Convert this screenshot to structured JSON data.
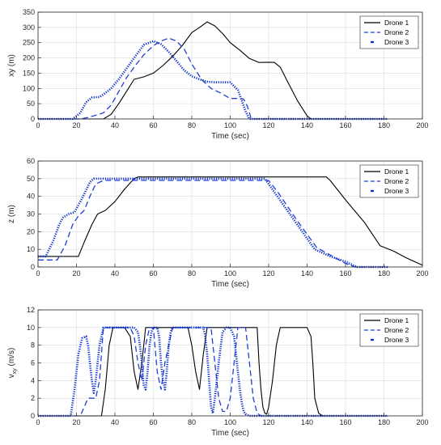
{
  "chart_data": [
    {
      "type": "line",
      "xlabel": "Time (sec)",
      "ylabel": "xy (m)",
      "xlim": [
        0,
        200
      ],
      "ylim": [
        0,
        350
      ],
      "xticks": [
        0,
        20,
        40,
        60,
        80,
        100,
        120,
        140,
        160,
        180,
        200
      ],
      "yticks": [
        0,
        50,
        100,
        150,
        200,
        250,
        300,
        350
      ],
      "grid": true,
      "legend_position": "top-right",
      "series": [
        {
          "name": "Drone 1",
          "color": "#000000",
          "style": "solid",
          "x": [
            0,
            34,
            38,
            42,
            46,
            50,
            55,
            60,
            65,
            70,
            75,
            80,
            84,
            88,
            92,
            96,
            100,
            105,
            110,
            115,
            120,
            123,
            126,
            130,
            135,
            140,
            142,
            182
          ],
          "y": [
            0,
            0,
            15,
            50,
            90,
            130,
            138,
            150,
            175,
            205,
            240,
            283,
            300,
            318,
            305,
            280,
            250,
            225,
            198,
            185,
            186,
            185,
            170,
            120,
            60,
            10,
            0,
            0
          ]
        },
        {
          "name": "Drone 2",
          "color": "#1f3fd6",
          "style": "dashed",
          "x": [
            0,
            22,
            26,
            30,
            34,
            38,
            42,
            46,
            50,
            55,
            60,
            64,
            68,
            72,
            76,
            80,
            85,
            90,
            95,
            100,
            104,
            107,
            109,
            111,
            180
          ],
          "y": [
            0,
            0,
            5,
            12,
            20,
            45,
            90,
            135,
            170,
            210,
            240,
            255,
            265,
            255,
            230,
            180,
            130,
            100,
            85,
            67,
            67,
            65,
            40,
            0,
            0
          ]
        },
        {
          "name": "Drone 3",
          "color": "#0a2fd0",
          "style": "dotted",
          "x": [
            0,
            18,
            22,
            25,
            28,
            32,
            34,
            38,
            42,
            46,
            50,
            55,
            60,
            64,
            68,
            72,
            76,
            80,
            84,
            88,
            92,
            96,
            100,
            104,
            106,
            108,
            110,
            182
          ],
          "y": [
            0,
            0,
            20,
            55,
            70,
            72,
            80,
            100,
            130,
            165,
            200,
            243,
            255,
            245,
            220,
            190,
            160,
            140,
            130,
            122,
            120,
            120,
            120,
            95,
            60,
            25,
            0,
            0
          ]
        }
      ]
    },
    {
      "type": "line",
      "xlabel": "Time (sec)",
      "ylabel": "z (m)",
      "xlim": [
        0,
        200
      ],
      "ylim": [
        0,
        60
      ],
      "xticks": [
        0,
        20,
        40,
        60,
        80,
        100,
        120,
        140,
        160,
        180,
        200
      ],
      "yticks": [
        0,
        10,
        20,
        30,
        40,
        50,
        60
      ],
      "grid": true,
      "legend_position": "top-right",
      "series": [
        {
          "name": "Drone 1",
          "color": "#000000",
          "style": "solid",
          "x": [
            0,
            21,
            24,
            28,
            31,
            35,
            40,
            45,
            50,
            52,
            100,
            150,
            152,
            160,
            170,
            178,
            185,
            192,
            200
          ],
          "y": [
            6,
            6,
            14,
            24,
            30,
            32,
            37,
            44,
            50,
            51,
            51,
            51,
            49,
            38,
            25,
            12,
            9,
            5,
            1
          ]
        },
        {
          "name": "Drone 2",
          "color": "#1f3fd6",
          "style": "dashed",
          "x": [
            0,
            10,
            14,
            18,
            21,
            24,
            27,
            30,
            34,
            100,
            120,
            125,
            135,
            145,
            150,
            155,
            160,
            165,
            170,
            182
          ],
          "y": [
            4,
            4,
            12,
            24,
            29,
            32,
            40,
            47,
            49,
            49,
            49,
            42,
            26,
            11,
            8,
            5,
            2,
            0,
            0,
            0
          ]
        },
        {
          "name": "Drone 3",
          "color": "#0a2fd0",
          "style": "dotted",
          "x": [
            0,
            4,
            8,
            11,
            13,
            16,
            19,
            23,
            27,
            29,
            100,
            118,
            144,
            152,
            160,
            166,
            182
          ],
          "y": [
            6,
            6,
            15,
            24,
            28,
            30,
            31,
            39,
            48,
            50,
            50,
            50,
            10,
            6,
            3,
            0,
            0
          ]
        }
      ]
    },
    {
      "type": "line",
      "xlabel": "Time (sec)",
      "ylabel": "v",
      "ylabel_sub": "xy",
      "ylabel_unit": " (m/s)",
      "xlim": [
        0,
        200
      ],
      "ylim": [
        0,
        12
      ],
      "xticks": [
        0,
        20,
        40,
        60,
        80,
        100,
        120,
        140,
        160,
        180,
        200
      ],
      "yticks": [
        0,
        2,
        4,
        6,
        8,
        10,
        12
      ],
      "grid": true,
      "legend_position": "top-right",
      "series": [
        {
          "name": "Drone 1",
          "color": "#000000",
          "style": "solid",
          "x": [
            0,
            33,
            35,
            37,
            39,
            45,
            48,
            50,
            52,
            54,
            56,
            58,
            60,
            62,
            64,
            66,
            68,
            70,
            72,
            74,
            76,
            78,
            80,
            82,
            84,
            86,
            88,
            90,
            92,
            94,
            96,
            98,
            100,
            112,
            114,
            115,
            116,
            117,
            118,
            119,
            120,
            122,
            124,
            126,
            128,
            130,
            140,
            142,
            143,
            144,
            146,
            148,
            182
          ],
          "y": [
            0,
            0,
            3,
            8,
            10,
            10,
            9,
            5,
            3,
            6,
            10,
            10,
            10,
            10,
            10,
            10,
            10,
            10,
            10,
            10,
            10,
            10,
            8,
            5,
            3,
            7,
            10,
            10,
            10,
            10,
            10,
            10,
            10,
            10,
            10,
            6,
            3,
            1,
            0.3,
            0.2,
            1,
            4,
            8,
            10,
            10,
            10,
            10,
            9,
            6,
            2,
            0.3,
            0,
            0
          ]
        },
        {
          "name": "Drone 2",
          "color": "#1f3fd6",
          "style": "dashed",
          "x": [
            0,
            22,
            24,
            26,
            28,
            30,
            32,
            34,
            36,
            48,
            50,
            52,
            54,
            56,
            58,
            60,
            62,
            64,
            66,
            68,
            70,
            72,
            84,
            86,
            88,
            90,
            92,
            94,
            96,
            98,
            100,
            102,
            104,
            106,
            108,
            110,
            112,
            114,
            116,
            182
          ],
          "y": [
            0,
            0,
            1,
            2,
            2,
            2,
            4,
            10,
            10,
            10,
            9,
            6,
            4,
            8,
            10,
            10,
            5,
            3,
            6,
            8,
            10,
            10,
            10,
            10,
            10,
            10,
            6,
            2,
            0.5,
            0.5,
            2,
            6,
            10,
            10,
            10,
            6,
            2,
            0.3,
            0,
            0
          ]
        },
        {
          "name": "Drone 3",
          "color": "#0a2fd0",
          "style": "dotted",
          "x": [
            0,
            17,
            19,
            21,
            23,
            25,
            26,
            27,
            28,
            29,
            30,
            31,
            32,
            34,
            35,
            36,
            48,
            50,
            52,
            53,
            54,
            55,
            56,
            57,
            58,
            59,
            60,
            62,
            63,
            64,
            65,
            66,
            67,
            68,
            69,
            70,
            72,
            84,
            86,
            87,
            88,
            89,
            90,
            91,
            92,
            94,
            96,
            98,
            100,
            102,
            103,
            104,
            105,
            106,
            107,
            108,
            109,
            110,
            182
          ],
          "y": [
            0,
            0,
            3,
            7,
            8.8,
            9,
            8,
            6,
            4,
            2.6,
            4,
            6,
            8,
            10,
            10,
            10,
            10,
            10,
            9.5,
            8,
            6,
            3.5,
            3,
            5,
            8,
            9.5,
            10,
            10,
            9,
            6,
            4,
            3,
            5,
            8,
            9.5,
            10,
            10,
            10,
            10,
            9,
            7,
            4,
            1,
            0.3,
            2,
            6,
            9.5,
            10,
            10,
            9,
            7,
            5,
            3,
            1.5,
            0.5,
            0.2,
            0.1,
            0,
            0
          ]
        }
      ]
    }
  ]
}
